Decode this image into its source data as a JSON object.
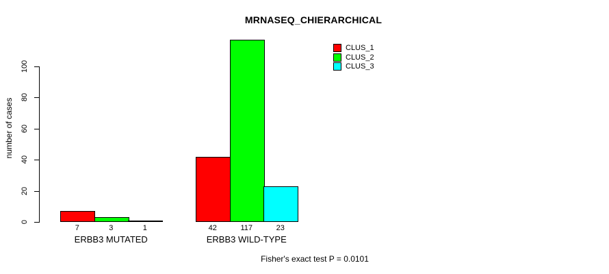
{
  "chart_data": {
    "type": "bar",
    "title": "MRNASEQ_CHIERARCHICAL",
    "xlabel": "",
    "ylabel": "number of cases",
    "categories": [
      "ERBB3 MUTATED",
      "ERBB3 WILD-TYPE"
    ],
    "series": [
      {
        "name": "CLUS_1",
        "color": "#ff0000",
        "values": [
          7,
          42
        ]
      },
      {
        "name": "CLUS_2",
        "color": "#00ff00",
        "values": [
          3,
          117
        ]
      },
      {
        "name": "CLUS_3",
        "color": "#00ffff",
        "values": [
          1,
          23
        ]
      }
    ],
    "bar_value_labels": [
      [
        7,
        3,
        1
      ],
      [
        42,
        117,
        23
      ]
    ],
    "yticks": [
      0,
      20,
      40,
      60,
      80,
      100
    ],
    "ylim": [
      0,
      117
    ],
    "grid": false,
    "bar_border_color": "#000000",
    "legend": {
      "position": "top-right",
      "entries": [
        "CLUS_1",
        "CLUS_2",
        "CLUS_3"
      ]
    },
    "annotation": "Fisher's exact test P = 0.0101"
  }
}
